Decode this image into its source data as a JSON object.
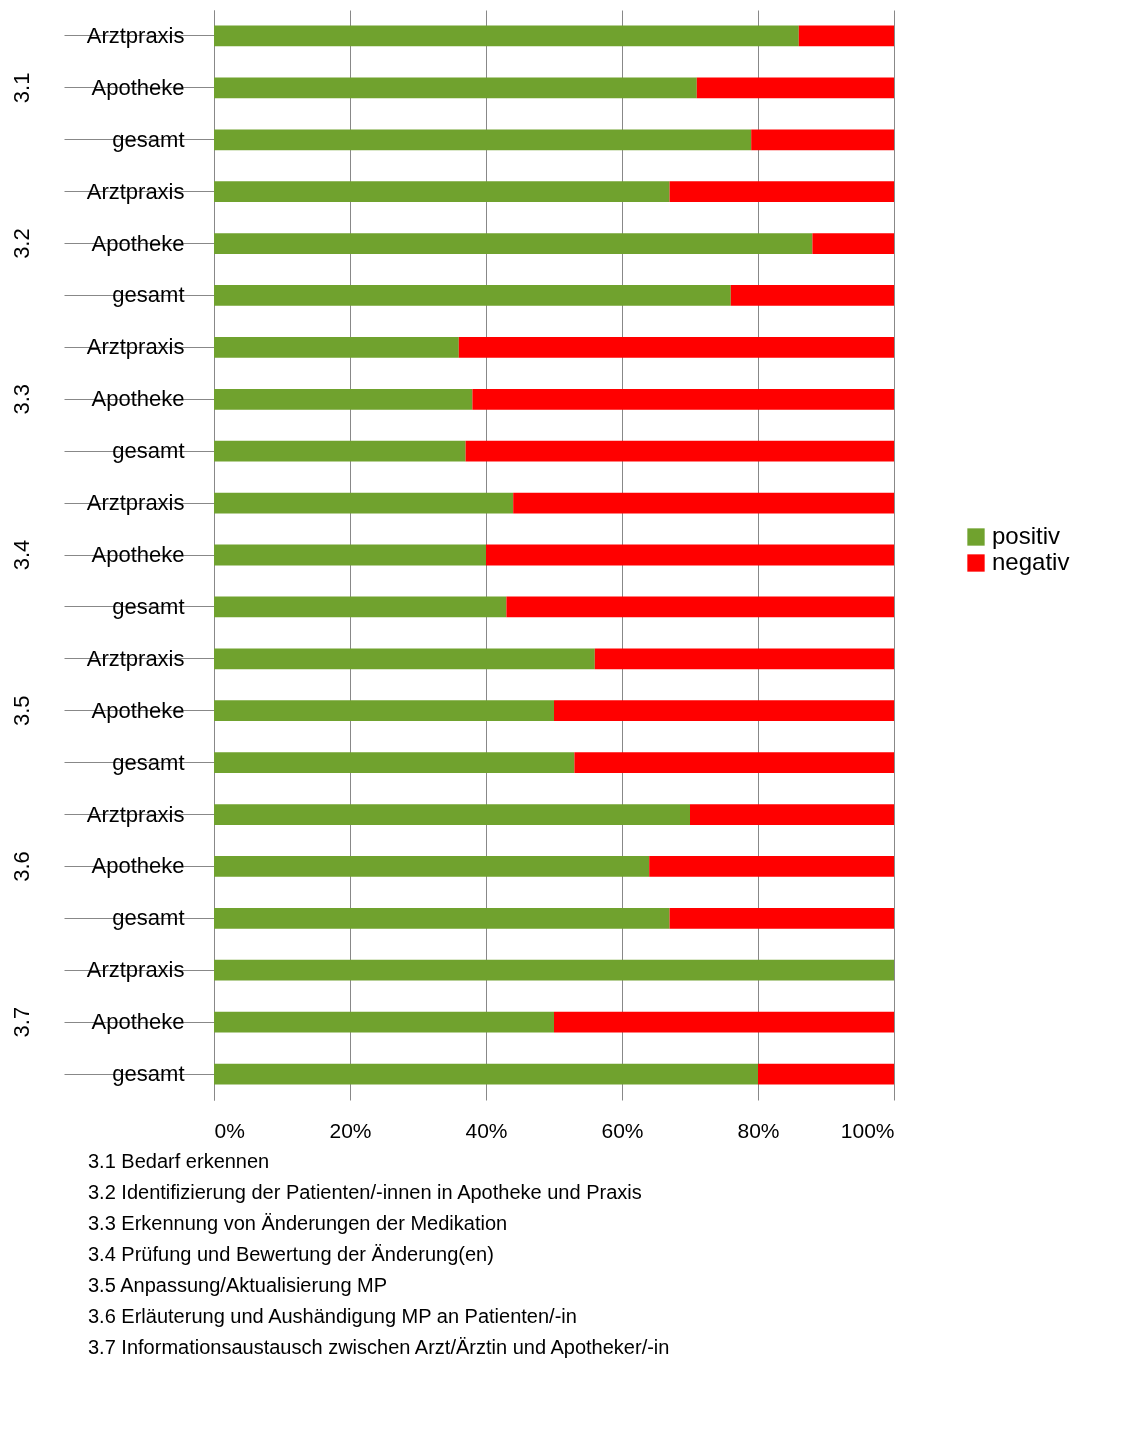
{
  "chart_data": {
    "type": "bar",
    "orientation": "horizontal",
    "stacked": true,
    "categories": [
      "Arztpraxis",
      "Apotheke",
      "gesamt",
      "Arztpraxis",
      "Apotheke",
      "gesamt",
      "Arztpraxis",
      "Apotheke",
      "gesamt",
      "Arztpraxis",
      "Apotheke",
      "gesamt",
      "Arztpraxis",
      "Apotheke",
      "gesamt",
      "Arztpraxis",
      "Apotheke",
      "gesamt",
      "Arztpraxis",
      "Apotheke",
      "gesamt"
    ],
    "series": [
      {
        "name": "positiv",
        "color": "#70a22e",
        "values": [
          86,
          71,
          79,
          67,
          88,
          76,
          36,
          38,
          37,
          44,
          40,
          43,
          56,
          50,
          53,
          70,
          64,
          67,
          100,
          50,
          80
        ]
      },
      {
        "name": "negativ",
        "color": "#ff0000",
        "values": [
          14,
          29,
          21,
          33,
          12,
          24,
          64,
          62,
          63,
          56,
          60,
          57,
          44,
          50,
          47,
          30,
          36,
          33,
          0,
          50,
          20
        ]
      }
    ],
    "xlim": [
      0,
      100
    ],
    "xticks": [
      {
        "value": 0,
        "label": "0%"
      },
      {
        "value": 20,
        "label": "20%"
      },
      {
        "value": 40,
        "label": "40%"
      },
      {
        "value": 60,
        "label": "60%"
      },
      {
        "value": 80,
        "label": "80%"
      },
      {
        "value": 100,
        "label": "100%"
      }
    ],
    "grid": "x",
    "legend": "right",
    "annotations": [
      "3.1",
      "3.2",
      "3.3",
      "3.4",
      "3.5",
      "3.6",
      "3.7",
      "3.1 Bedarf erkennen",
      "3.2 Identifizierung der Patienten/-innen in Apotheke und Praxis",
      "3.3 Erkennung von Änderungen der Medikation",
      "3.4 Prüfung und Bewertung der Änderung(en)",
      "3.5 Anpassung/Aktualisierung MP",
      "3.6 Erläuterung und Aushändigung MP an Patienten/-in",
      "3.7 Informationsaustausch zwischen Arzt/Ärztin und Apotheker/-in"
    ]
  }
}
